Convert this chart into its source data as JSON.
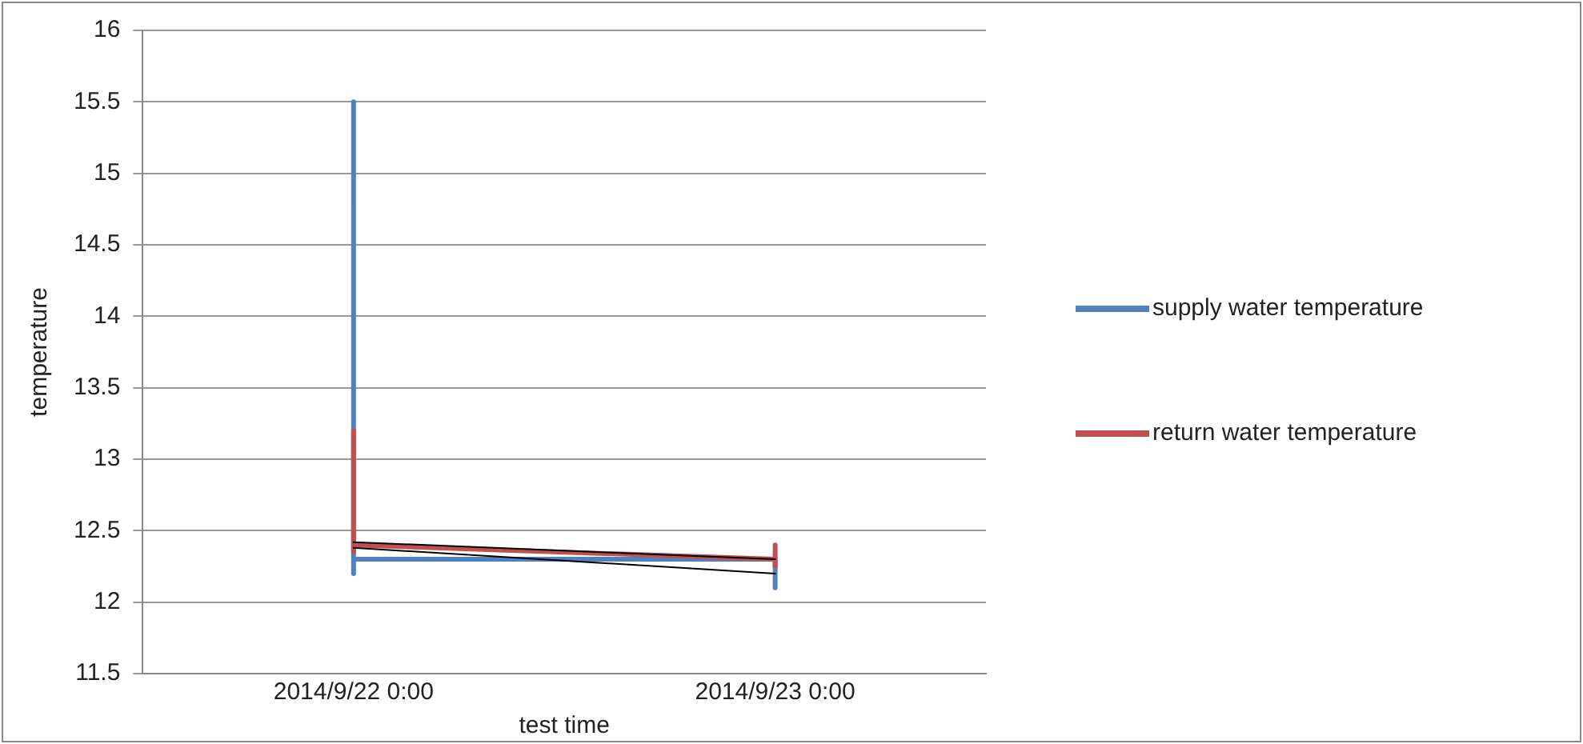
{
  "chart_data": {
    "type": "line",
    "xlabel": "test time",
    "ylabel": "temperature",
    "xlim": [
      "2014-09-21T12:00",
      "2014-09-23T12:00"
    ],
    "xticks": [
      {
        "value": "2014-09-22",
        "label": "2014/9/22 0:00"
      },
      {
        "value": "2014-09-23",
        "label": "2014/9/23 0:00"
      }
    ],
    "ylim": [
      11.5,
      16
    ],
    "yticks": [
      11.5,
      12,
      12.5,
      13,
      13.5,
      14,
      14.5,
      15,
      15.5,
      16
    ],
    "series": [
      {
        "name": "supply water temperature",
        "color": "#4f81bd",
        "x": [
          "2014-09-22",
          "2014-09-22",
          "2014-09-22",
          "2014-09-23",
          "2014-09-23"
        ],
        "values": [
          15.5,
          12.2,
          12.3,
          12.3,
          12.1
        ]
      },
      {
        "name": "return water temperature",
        "color": "#c0504d",
        "x": [
          "2014-09-22",
          "2014-09-22",
          "2014-09-22",
          "2014-09-23",
          "2014-09-23",
          "2014-09-23"
        ],
        "values": [
          13.2,
          12.35,
          12.4,
          12.3,
          12.4,
          12.25
        ]
      },
      {
        "color": "#000000",
        "x": [
          "2014-09-22",
          "2014-09-23"
        ],
        "values": [
          12.42,
          12.3
        ]
      },
      {
        "color": "#000000",
        "x": [
          "2014-09-22",
          "2014-09-23"
        ],
        "values": [
          12.38,
          12.2
        ]
      }
    ],
    "grid": "y",
    "legend": "right",
    "marker": "none",
    "line_style": "solid"
  }
}
